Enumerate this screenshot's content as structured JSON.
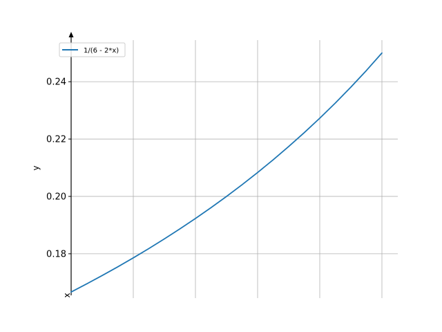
{
  "chart_data": {
    "type": "line",
    "title": "",
    "xlabel": "x",
    "ylabel": "y",
    "grid": true,
    "legend_position": "top-left",
    "xlim": [
      0,
      1
    ],
    "ylim": [
      0.1655,
      0.2545
    ],
    "y_ticks": [
      "0.18",
      "0.20",
      "0.22",
      "0.24"
    ],
    "x_tick_labels_shown": false,
    "series": [
      {
        "name": "1/(6 - 2*x)",
        "color": "#1f77b4",
        "x": [
          0.0,
          0.05,
          0.1,
          0.15,
          0.2,
          0.25,
          0.3,
          0.35,
          0.4,
          0.45,
          0.5,
          0.55,
          0.6,
          0.65,
          0.7,
          0.75,
          0.8,
          0.85,
          0.9,
          0.95,
          1.0
        ],
        "y": [
          0.16667,
          0.16949,
          0.17241,
          0.17544,
          0.17857,
          0.18182,
          0.18519,
          0.18868,
          0.19231,
          0.19608,
          0.2,
          0.20408,
          0.20833,
          0.21277,
          0.21739,
          0.22222,
          0.22727,
          0.23256,
          0.2381,
          0.2439,
          0.25
        ]
      }
    ]
  }
}
